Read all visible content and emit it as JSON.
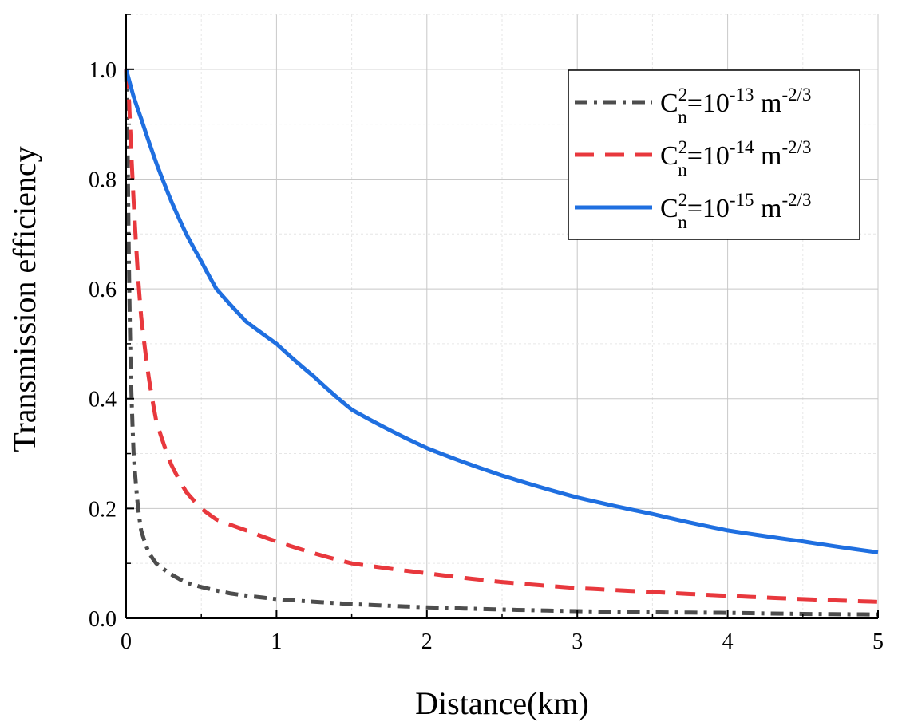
{
  "chart_data": {
    "type": "line",
    "title": "",
    "xlabel": "Distance(km)",
    "ylabel": "Transmission efficiency",
    "xlim": [
      0,
      5
    ],
    "ylim": [
      0,
      1.1
    ],
    "x_ticks": [
      "0",
      "1",
      "2",
      "3",
      "4",
      "5"
    ],
    "y_ticks": [
      "0.0",
      "0.2",
      "0.4",
      "0.6",
      "0.8",
      "1.0"
    ],
    "grid": true,
    "legend_position": "top-right",
    "series": [
      {
        "name": "C_n^2=10^-13 m^-2/3",
        "legend": {
          "base": "C",
          "sub": "n",
          "sup": "2",
          "mid": "=10",
          "exp": "-13",
          "unit": " m",
          "unit_exp": "-2/3"
        },
        "color": "#4d4d4d",
        "style": "dash-dot",
        "x": [
          0,
          0.01,
          0.02,
          0.03,
          0.05,
          0.08,
          0.1,
          0.15,
          0.2,
          0.3,
          0.4,
          0.5,
          0.7,
          1,
          1.5,
          2,
          2.5,
          3,
          3.5,
          4,
          4.5,
          5
        ],
        "values": [
          1.0,
          0.86,
          0.62,
          0.46,
          0.3,
          0.2,
          0.16,
          0.12,
          0.1,
          0.08,
          0.065,
          0.057,
          0.045,
          0.035,
          0.026,
          0.02,
          0.016,
          0.013,
          0.011,
          0.01,
          0.008,
          0.007
        ]
      },
      {
        "name": "C_n^2=10^-14 m^-2/3",
        "legend": {
          "base": "C",
          "sub": "n",
          "sup": "2",
          "mid": "=10",
          "exp": "-14",
          "unit": " m",
          "unit_exp": "-2/3"
        },
        "color": "#e8383d",
        "style": "dashed",
        "x": [
          0,
          0.02,
          0.05,
          0.08,
          0.1,
          0.15,
          0.2,
          0.3,
          0.4,
          0.5,
          0.6,
          0.8,
          1,
          1.5,
          2,
          2.5,
          3,
          3.5,
          4,
          4.5,
          5
        ],
        "values": [
          1.0,
          0.94,
          0.76,
          0.62,
          0.55,
          0.44,
          0.36,
          0.28,
          0.23,
          0.2,
          0.18,
          0.16,
          0.14,
          0.1,
          0.082,
          0.066,
          0.055,
          0.048,
          0.041,
          0.035,
          0.03
        ]
      },
      {
        "name": "C_n^2=10^-15 m^-2/3",
        "legend": {
          "base": "C",
          "sub": "n",
          "sup": "2",
          "mid": "=10",
          "exp": "-15",
          "unit": " m",
          "unit_exp": "-2/3"
        },
        "color": "#1f6fe0",
        "style": "solid",
        "x": [
          0,
          0.05,
          0.1,
          0.2,
          0.3,
          0.4,
          0.5,
          0.6,
          0.8,
          1,
          1.25,
          1.5,
          2,
          2.5,
          3,
          3.5,
          4,
          4.5,
          5
        ],
        "values": [
          1.0,
          0.95,
          0.91,
          0.83,
          0.76,
          0.7,
          0.65,
          0.6,
          0.54,
          0.5,
          0.44,
          0.38,
          0.31,
          0.26,
          0.22,
          0.19,
          0.16,
          0.14,
          0.12
        ]
      }
    ]
  }
}
